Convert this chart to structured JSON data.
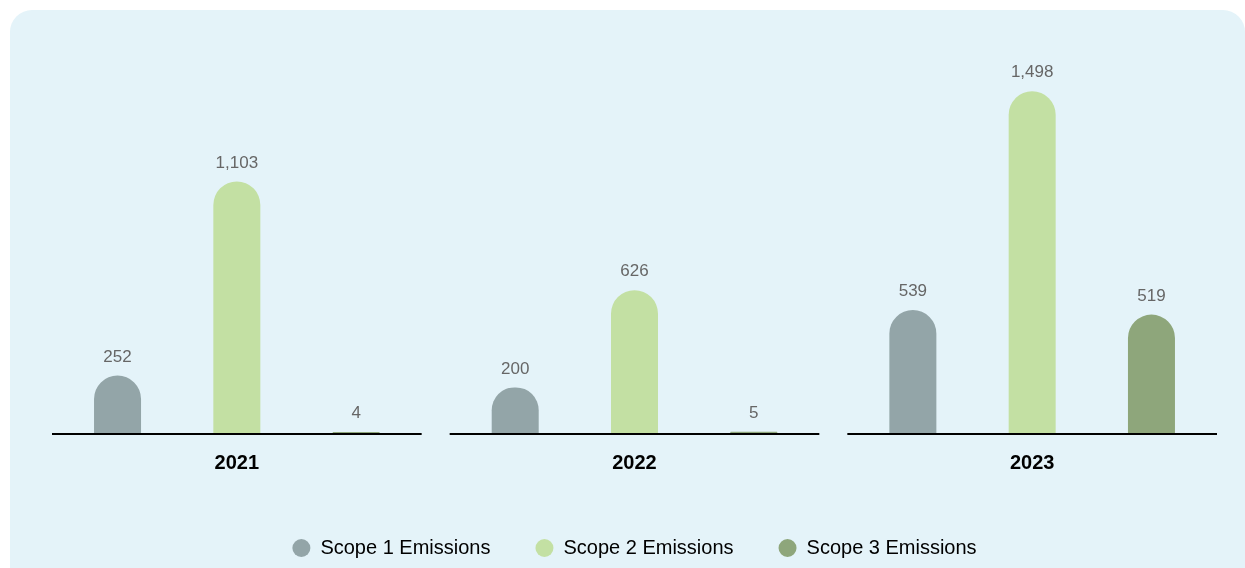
{
  "chart_data": {
    "type": "bar",
    "categories": [
      "2021",
      "2022",
      "2023"
    ],
    "series": [
      {
        "name": "Scope 1 Emissions",
        "color": "#93a5a8",
        "values": [
          252,
          200,
          539
        ],
        "value_labels": [
          "252",
          "200",
          "539"
        ]
      },
      {
        "name": "Scope 2 Emissions",
        "color": "#c3e0a3",
        "values": [
          1103,
          626,
          1498
        ],
        "value_labels": [
          "1,103",
          "626",
          "1,498"
        ]
      },
      {
        "name": "Scope 3 Emissions",
        "color": "#8ea67b",
        "values": [
          4,
          5,
          519
        ],
        "value_labels": [
          "4",
          "5",
          "519"
        ]
      }
    ],
    "grid": false,
    "legend": "bottom"
  }
}
